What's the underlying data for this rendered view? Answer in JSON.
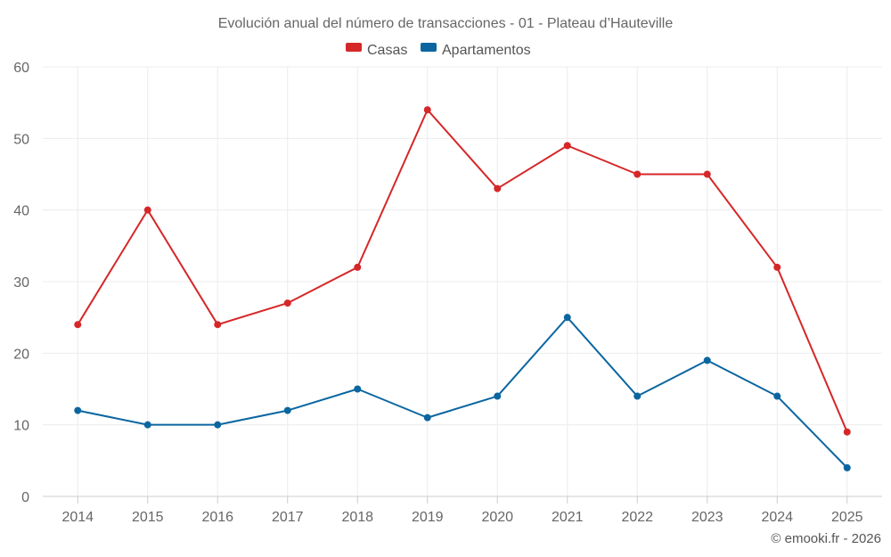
{
  "chart_data": {
    "type": "line",
    "title": "Evolución anual del número de transacciones - 01 - Plateau d’Hauteville",
    "categories": [
      "2014",
      "2015",
      "2016",
      "2017",
      "2018",
      "2019",
      "2020",
      "2021",
      "2022",
      "2023",
      "2024",
      "2025"
    ],
    "series": [
      {
        "name": "Casas",
        "color": "#d62728",
        "values": [
          24,
          40,
          24,
          27,
          32,
          54,
          43,
          49,
          45,
          45,
          32,
          9
        ]
      },
      {
        "name": "Apartamentos",
        "color": "#0b66a0",
        "values": [
          12,
          10,
          10,
          12,
          15,
          11,
          14,
          25,
          14,
          19,
          14,
          4
        ]
      }
    ],
    "ylim": [
      0,
      60
    ],
    "yticks": [
      0,
      10,
      20,
      30,
      40,
      50,
      60
    ],
    "xlabel": "",
    "ylabel": "",
    "grid": true,
    "legend": "top-center"
  },
  "credit": "© emooki.fr - 2026"
}
